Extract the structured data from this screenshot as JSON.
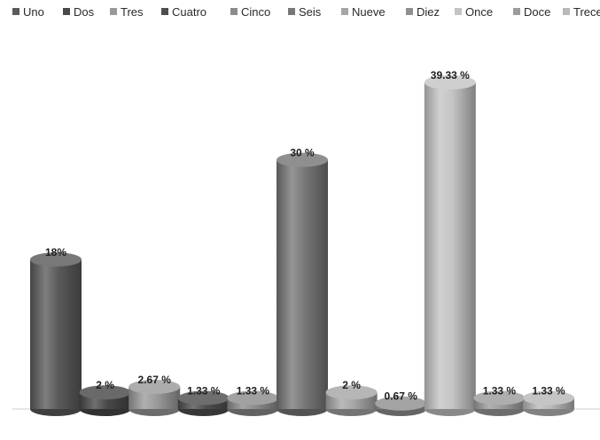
{
  "chart_data": {
    "type": "bar",
    "style": "3d-cylinder",
    "title": "",
    "xlabel": "",
    "ylabel": "",
    "legend_position": "top",
    "grid": false,
    "ylim": [
      0,
      42
    ],
    "categories": [
      "Uno",
      "Dos",
      "Tres",
      "Cuatro",
      "Cinco",
      "Seis",
      "Nueve",
      "Diez",
      "Once",
      "Doce",
      "Trece"
    ],
    "values": [
      18,
      2,
      2.67,
      1.33,
      1.33,
      30,
      2,
      0.67,
      39.33,
      1.33,
      1.33
    ],
    "data_labels": [
      "18%",
      "2 %",
      "2.67 %",
      "1.33 %",
      "1.33 %",
      "30 %",
      "2 %",
      "0.67 %",
      "39.33 %",
      "1.33 %",
      "1.33 %"
    ],
    "colors": [
      "#5a5a5a",
      "#484848",
      "#9a9a9a",
      "#4e4e4e",
      "#8c8c8c",
      "#777777",
      "#a6a6a6",
      "#909090",
      "#c4c4c4",
      "#9c9c9c",
      "#b8b8b8"
    ]
  }
}
